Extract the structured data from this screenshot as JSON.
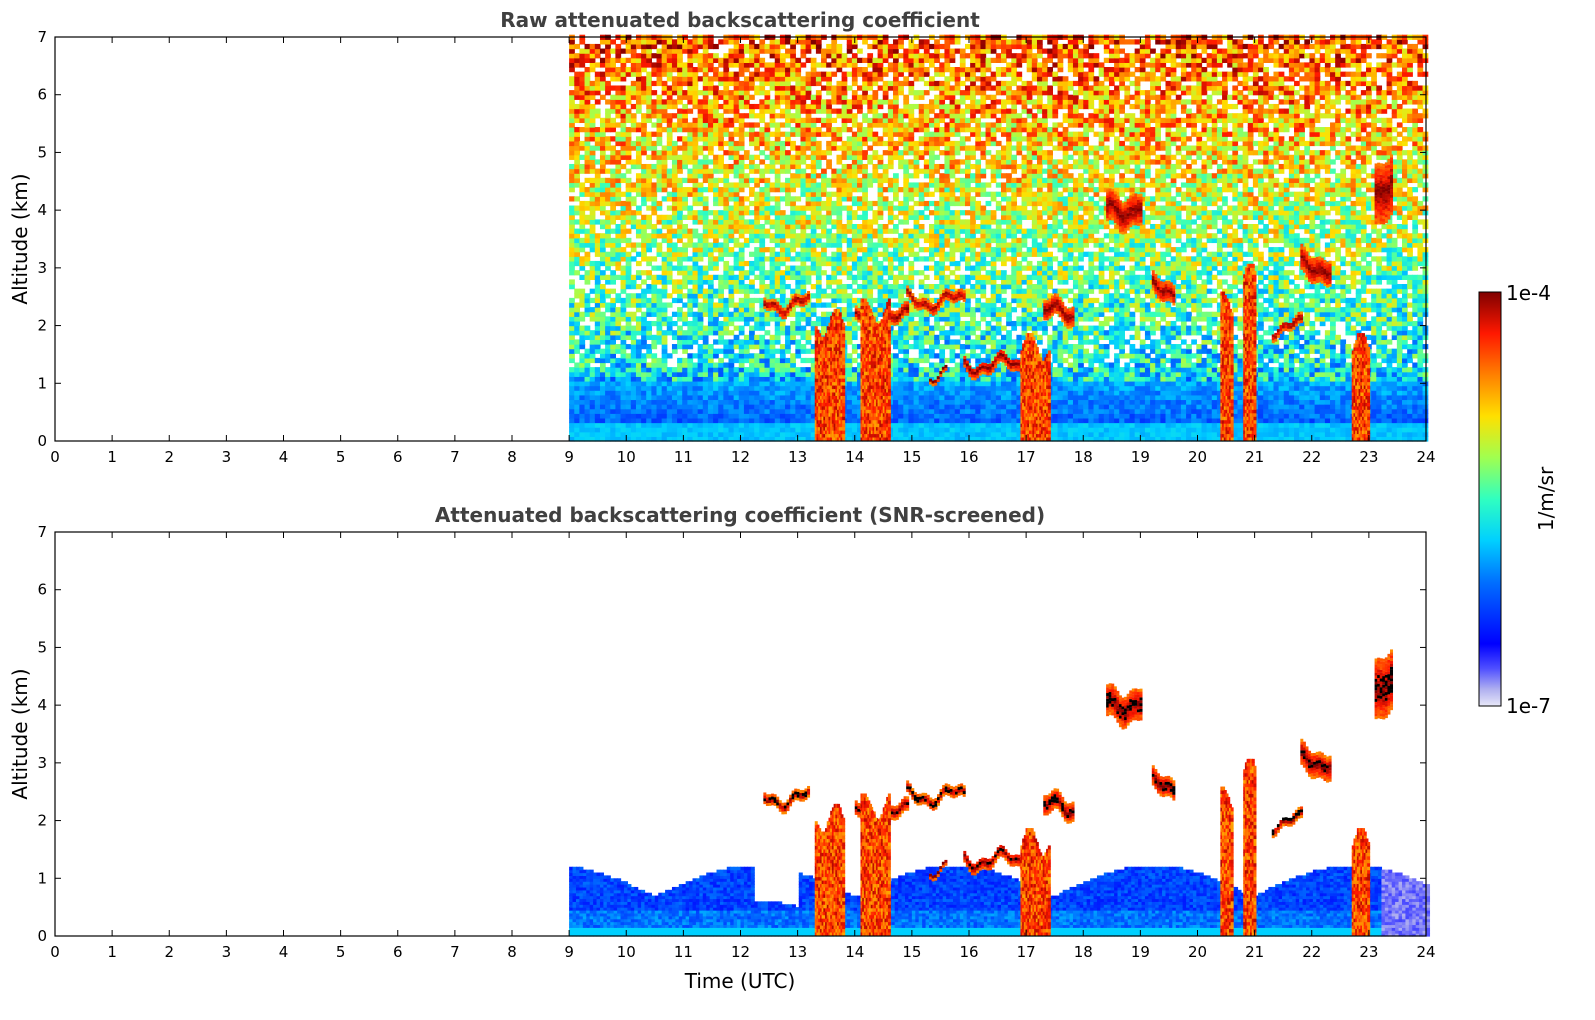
{
  "chart_data": [
    {
      "type": "heatmap",
      "title": "Raw attenuated backscattering coefficient",
      "xlabel": "",
      "ylabel": "Altitude (km)",
      "xlim": [
        0,
        24
      ],
      "ylim": [
        0,
        7
      ],
      "xticks": [
        0,
        1,
        2,
        3,
        4,
        5,
        6,
        7,
        8,
        9,
        10,
        11,
        12,
        13,
        14,
        15,
        16,
        17,
        18,
        19,
        20,
        21,
        22,
        23,
        24
      ],
      "yticks": [
        0,
        1,
        2,
        3,
        4,
        5,
        6,
        7
      ],
      "data_start_time": 9,
      "noisy_background": true,
      "cloud_layers": [
        {
          "t0": 12.4,
          "t1": 13.2,
          "alt": 2.35,
          "thick": 0.15
        },
        {
          "t0": 14.0,
          "t1": 14.9,
          "alt": 2.1,
          "thick": 0.2
        },
        {
          "t0": 14.9,
          "t1": 15.9,
          "alt": 2.4,
          "thick": 0.15
        },
        {
          "t0": 15.3,
          "t1": 15.6,
          "alt": 1.15,
          "thick": 0.1
        },
        {
          "t0": 15.9,
          "t1": 17.0,
          "alt": 1.3,
          "thick": 0.2
        },
        {
          "t0": 17.3,
          "t1": 17.8,
          "alt": 2.2,
          "thick": 0.3
        },
        {
          "t0": 18.4,
          "t1": 19.0,
          "alt": 4.0,
          "thick": 0.5
        },
        {
          "t0": 19.2,
          "t1": 19.6,
          "alt": 2.6,
          "thick": 0.3
        },
        {
          "t0": 21.3,
          "t1": 21.8,
          "alt": 1.95,
          "thick": 0.15
        },
        {
          "t0": 21.8,
          "t1": 22.3,
          "alt": 3.0,
          "thick": 0.4
        },
        {
          "t0": 23.1,
          "t1": 23.4,
          "alt": 4.3,
          "thick": 1.0
        }
      ],
      "precip_columns": [
        {
          "t0": 13.3,
          "t1": 13.8,
          "top": 2.0
        },
        {
          "t0": 14.1,
          "t1": 14.6,
          "top": 2.2
        },
        {
          "t0": 16.9,
          "t1": 17.4,
          "top": 1.6
        },
        {
          "t0": 20.4,
          "t1": 20.6,
          "top": 2.3
        },
        {
          "t0": 20.8,
          "t1": 21.0,
          "top": 2.8
        },
        {
          "t0": 22.7,
          "t1": 23.0,
          "top": 1.6
        }
      ]
    },
    {
      "type": "heatmap",
      "title": "Attenuated backscattering coefficient (SNR-screened)",
      "xlabel": "Time (UTC)",
      "ylabel": "Altitude (km)",
      "xlim": [
        0,
        24
      ],
      "ylim": [
        0,
        7
      ],
      "xticks": [
        0,
        1,
        2,
        3,
        4,
        5,
        6,
        7,
        8,
        9,
        10,
        11,
        12,
        13,
        14,
        15,
        16,
        17,
        18,
        19,
        20,
        21,
        22,
        23,
        24
      ],
      "yticks": [
        0,
        1,
        2,
        3,
        4,
        5,
        6,
        7
      ],
      "data_start_time": 9,
      "noisy_background": false,
      "boundary_layer_top": 1.2
    }
  ],
  "colorbar": {
    "label": "1/m/sr",
    "max_label": "1e-4",
    "min_label": "1e-7",
    "scale": "log",
    "range": [
      1e-07,
      0.0001
    ],
    "colormap": "jet"
  }
}
